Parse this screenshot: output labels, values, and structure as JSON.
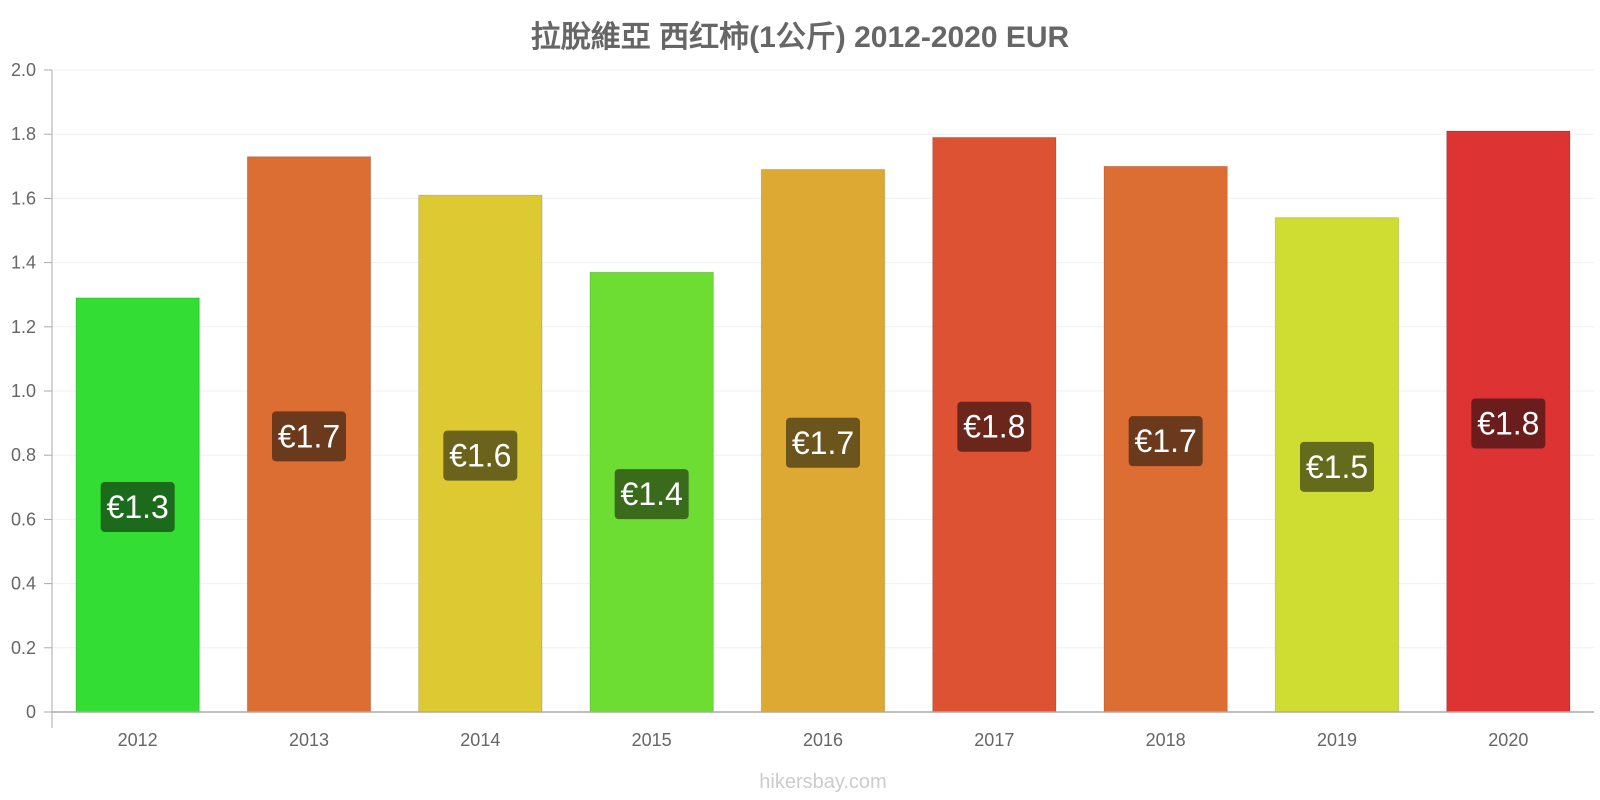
{
  "chart_data": {
    "type": "bar",
    "title": "拉脫維亞 西红柿(1公斤) 2012-2020 EUR",
    "categories": [
      "2012",
      "2013",
      "2014",
      "2015",
      "2016",
      "2017",
      "2018",
      "2019",
      "2020"
    ],
    "values": [
      1.29,
      1.73,
      1.61,
      1.37,
      1.69,
      1.79,
      1.7,
      1.54,
      1.81
    ],
    "data_labels": [
      "€1.3",
      "€1.7",
      "€1.6",
      "€1.4",
      "€1.7",
      "€1.8",
      "€1.7",
      "€1.5",
      "€1.8"
    ],
    "bar_colors": [
      "#33dd33",
      "#dd6e33",
      "#ddca33",
      "#6ddd33",
      "#dda933",
      "#dd5233",
      "#dd6e33",
      "#cfdd33",
      "#dd3333"
    ],
    "label_bg_colors": [
      "#1c6b1c",
      "#6b3a1c",
      "#6b621c",
      "#3a6b1c",
      "#6b551c",
      "#6b261c",
      "#6b3a1c",
      "#646b1c",
      "#6b1c1c"
    ],
    "y_ticks": [
      "0",
      "0.2",
      "0.4",
      "0.6",
      "0.8",
      "1.0",
      "1.2",
      "1.4",
      "1.6",
      "1.8",
      "2.0"
    ],
    "ylim": [
      0,
      2.0
    ],
    "grid": true,
    "legend": "none",
    "xlabel": "",
    "ylabel": ""
  },
  "footer": {
    "credit": "hikersbay.com"
  }
}
